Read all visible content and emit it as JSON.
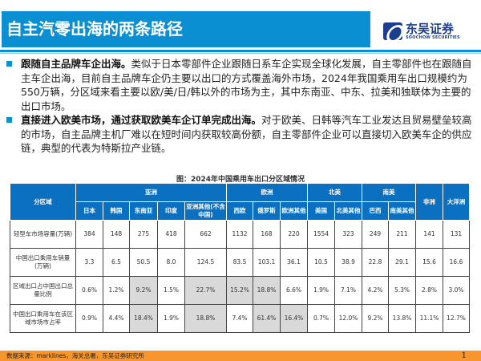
{
  "title": "自主汽零出海的两条路径",
  "logo": {
    "cn": "东吴证券",
    "en": "SOOCHOW SECURITIES"
  },
  "bullets": [
    {
      "bold": "跟随自主品牌车企出海。",
      "text": "类似于日本零部件企业跟随日系车企实现全球化发展，自主零部件也在跟随自主车企出海，目前自主品牌车企仍主要以出口的方式覆盖海外市场，2024年我国乘用车出口规模约为550万辆，分区域来看主要以欧/美/日/韩以外的市场为主，其中东南亚、中东、拉美和独联体为主要的出口市场。"
    },
    {
      "bold": "直接进入欧美市场，通过获取欧美车企订单完成出海。",
      "text": "对于欧美、日韩等汽车工业发达且贸易壁垒较高的市场，自主品牌主机厂难以在短时间内获取较高份额，自主零部件企业可以直接切入欧美车企的供应链，典型的代表为特斯拉产业链。"
    }
  ],
  "caption": "图：2024年中国乘用车出口分区域情况",
  "table": {
    "corner": "分区域",
    "groups": [
      "亚洲",
      "欧洲",
      "北美",
      "南美",
      "非洲",
      "大洋洲"
    ],
    "cols": [
      "日本",
      "韩国",
      "东南亚",
      "印度",
      "亚洲其他(不含中国)",
      "西欧",
      "俄罗斯",
      "欧洲其他",
      "美国",
      "北美其他",
      "巴西",
      "南美其他"
    ],
    "rows": [
      {
        "label": "轻型车市场容量(万辆)",
        "values": [
          "384",
          "148",
          "275",
          "418",
          "662",
          "1132",
          "168",
          "220",
          "1554",
          "323",
          "249",
          "211",
          "141",
          "131"
        ],
        "shaded": []
      },
      {
        "label": "中国出口乘用车销量(万辆)",
        "values": [
          "3.3",
          "6.5",
          "50.5",
          "8.0",
          "124.5",
          "83.5",
          "103.1",
          "36.1",
          "10.5",
          "38.9",
          "22.8",
          "29.1",
          "15.6",
          "16.6"
        ],
        "shaded": []
      },
      {
        "label": "区域出口占中国出口总量比例",
        "values": [
          "0.6%",
          "1.2%",
          "9.2%",
          "1.5%",
          "22.7%",
          "15.2%",
          "18.8%",
          "6.6%",
          "1.9%",
          "7.1%",
          "4.2%",
          "5.3%",
          "2.8%",
          "3.0%"
        ],
        "shaded": [
          2,
          4,
          5,
          6
        ]
      },
      {
        "label": "中国出口乘用车在该区域市场市占率",
        "values": [
          "0.9%",
          "4.4%",
          "18.4%",
          "1.9%",
          "18.8%",
          "7.4%",
          "61.4%",
          "16.4%",
          "0.7%",
          "12.0%",
          "9.2%",
          "13.8%",
          "11.1%",
          "12.7%"
        ],
        "shaded": [
          2,
          4,
          6,
          7
        ]
      }
    ]
  },
  "footer": {
    "source": "数据来源：marklines，海关总署，东吴证券研究所",
    "page": "1"
  },
  "colors": {
    "brand": "#0a8fd2",
    "header": "#0b70c0",
    "footer": "#f7962e",
    "shade": "#d9d9d9"
  }
}
